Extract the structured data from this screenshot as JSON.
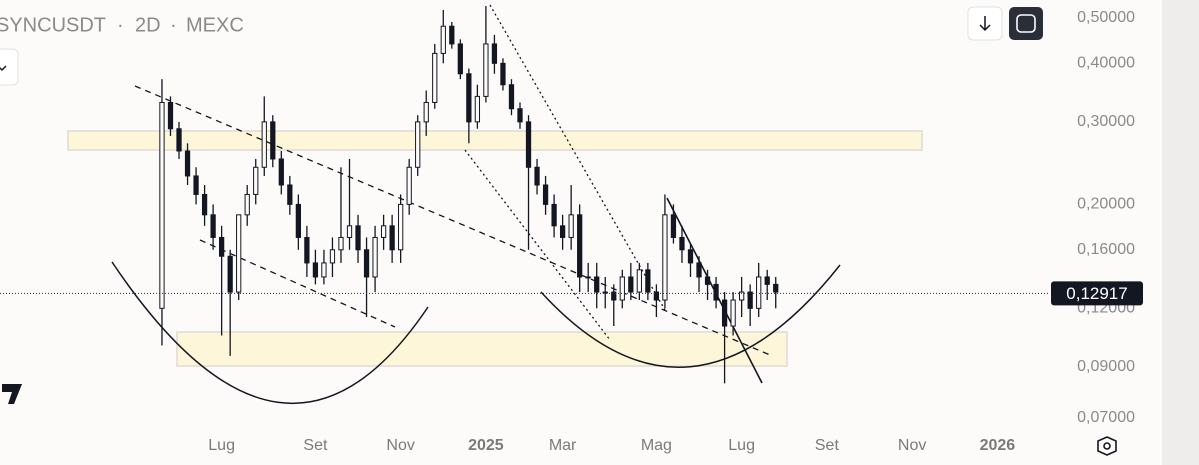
{
  "chart_data": {
    "type": "candlestick",
    "symbol": "SYNCUSDT",
    "interval": "2D",
    "exchange": "MEXC",
    "x": [
      19,
      20,
      21,
      22,
      23,
      24,
      25,
      26,
      27,
      28,
      29,
      30,
      31,
      32,
      33,
      34,
      35,
      36,
      37,
      38,
      39,
      40,
      41,
      42,
      43,
      44,
      45,
      46,
      47,
      48,
      49,
      50,
      51,
      52,
      53,
      54,
      55,
      56,
      57,
      58,
      59,
      60,
      61,
      62,
      63,
      64,
      65,
      66,
      67,
      68,
      69,
      70,
      71,
      72,
      73,
      74,
      75,
      76,
      77,
      78,
      79,
      80,
      81,
      82,
      83,
      84,
      85,
      86,
      87,
      88,
      89,
      90,
      91
    ],
    "open": [
      0.12,
      0.33,
      0.29,
      0.26,
      0.23,
      0.21,
      0.19,
      0.17,
      0.155,
      0.13,
      0.19,
      0.21,
      0.24,
      0.3,
      0.25,
      0.22,
      0.2,
      0.17,
      0.15,
      0.14,
      0.15,
      0.16,
      0.17,
      0.18,
      0.16,
      0.14,
      0.17,
      0.18,
      0.16,
      0.2,
      0.24,
      0.3,
      0.33,
      0.42,
      0.48,
      0.44,
      0.38,
      0.3,
      0.34,
      0.44,
      0.4,
      0.36,
      0.32,
      0.3,
      0.24,
      0.22,
      0.2,
      0.18,
      0.17,
      0.19,
      0.14,
      0.14,
      0.13,
      0.13,
      0.125,
      0.14,
      0.13,
      0.145,
      0.13,
      0.125,
      0.19,
      0.17,
      0.16,
      0.15,
      0.14,
      0.135,
      0.125,
      0.11,
      0.125,
      0.13,
      0.12,
      0.14,
      0.135
    ],
    "high": [
      0.37,
      0.34,
      0.3,
      0.27,
      0.24,
      0.22,
      0.2,
      0.18,
      0.16,
      0.19,
      0.22,
      0.25,
      0.34,
      0.31,
      0.26,
      0.23,
      0.21,
      0.18,
      0.16,
      0.16,
      0.17,
      0.24,
      0.25,
      0.19,
      0.17,
      0.18,
      0.19,
      0.19,
      0.21,
      0.25,
      0.31,
      0.35,
      0.44,
      0.52,
      0.49,
      0.45,
      0.39,
      0.36,
      0.53,
      0.46,
      0.41,
      0.37,
      0.33,
      0.31,
      0.25,
      0.23,
      0.21,
      0.19,
      0.22,
      0.2,
      0.15,
      0.15,
      0.14,
      0.135,
      0.145,
      0.15,
      0.15,
      0.15,
      0.135,
      0.21,
      0.2,
      0.18,
      0.165,
      0.155,
      0.145,
      0.14,
      0.13,
      0.13,
      0.14,
      0.135,
      0.15,
      0.145,
      0.14
    ],
    "low": [
      0.1,
      0.28,
      0.25,
      0.22,
      0.2,
      0.18,
      0.16,
      0.105,
      0.095,
      0.125,
      0.18,
      0.2,
      0.23,
      0.24,
      0.21,
      0.19,
      0.16,
      0.14,
      0.135,
      0.135,
      0.14,
      0.15,
      0.16,
      0.15,
      0.115,
      0.13,
      0.16,
      0.15,
      0.15,
      0.19,
      0.23,
      0.28,
      0.32,
      0.4,
      0.43,
      0.37,
      0.27,
      0.29,
      0.33,
      0.38,
      0.35,
      0.31,
      0.29,
      0.16,
      0.21,
      0.19,
      0.17,
      0.16,
      0.16,
      0.13,
      0.13,
      0.12,
      0.12,
      0.11,
      0.12,
      0.125,
      0.125,
      0.125,
      0.115,
      0.12,
      0.165,
      0.15,
      0.14,
      0.13,
      0.125,
      0.12,
      0.083,
      0.105,
      0.115,
      0.11,
      0.115,
      0.125,
      0.12
    ],
    "close": [
      0.33,
      0.29,
      0.26,
      0.23,
      0.21,
      0.19,
      0.17,
      0.155,
      0.13,
      0.19,
      0.21,
      0.24,
      0.3,
      0.25,
      0.22,
      0.2,
      0.17,
      0.15,
      0.14,
      0.15,
      0.16,
      0.17,
      0.18,
      0.16,
      0.14,
      0.17,
      0.18,
      0.16,
      0.2,
      0.24,
      0.3,
      0.33,
      0.42,
      0.48,
      0.44,
      0.38,
      0.3,
      0.34,
      0.44,
      0.4,
      0.36,
      0.32,
      0.3,
      0.24,
      0.22,
      0.2,
      0.18,
      0.17,
      0.19,
      0.14,
      0.14,
      0.13,
      0.13,
      0.125,
      0.14,
      0.13,
      0.145,
      0.13,
      0.125,
      0.19,
      0.17,
      0.16,
      0.15,
      0.14,
      0.135,
      0.125,
      0.11,
      0.125,
      0.13,
      0.12,
      0.14,
      0.135,
      0.13
    ],
    "xlim": [
      0,
      122
    ],
    "xticks": [
      {
        "value": 26,
        "label": "Lug"
      },
      {
        "value": 37,
        "label": "Set"
      },
      {
        "value": 47,
        "label": "Nov"
      },
      {
        "value": 57,
        "label": "2025"
      },
      {
        "value": 66,
        "label": "Mar"
      },
      {
        "value": 77,
        "label": "Mag"
      },
      {
        "value": 87,
        "label": "Lug"
      },
      {
        "value": 97,
        "label": "Set"
      },
      {
        "value": 107,
        "label": "Nov"
      },
      {
        "value": 117,
        "label": "2026"
      }
    ],
    "ylim": [
      0.066,
      0.546
    ],
    "log_scale": true,
    "yticks": [
      {
        "value": 0.5,
        "label": "0,50000"
      },
      {
        "value": 0.4,
        "label": "0,40000"
      },
      {
        "value": 0.3,
        "label": "0,30000"
      },
      {
        "value": 0.2,
        "label": "0,20000"
      },
      {
        "value": 0.16,
        "label": "0,16000"
      },
      {
        "value": 0.12,
        "label": "0,12000"
      },
      {
        "value": 0.09,
        "label": "0,09000"
      },
      {
        "value": 0.07,
        "label": "0,07000"
      }
    ],
    "last_price": {
      "value": 0.12917,
      "label": "0,12917"
    },
    "color": "#131722"
  }
}
